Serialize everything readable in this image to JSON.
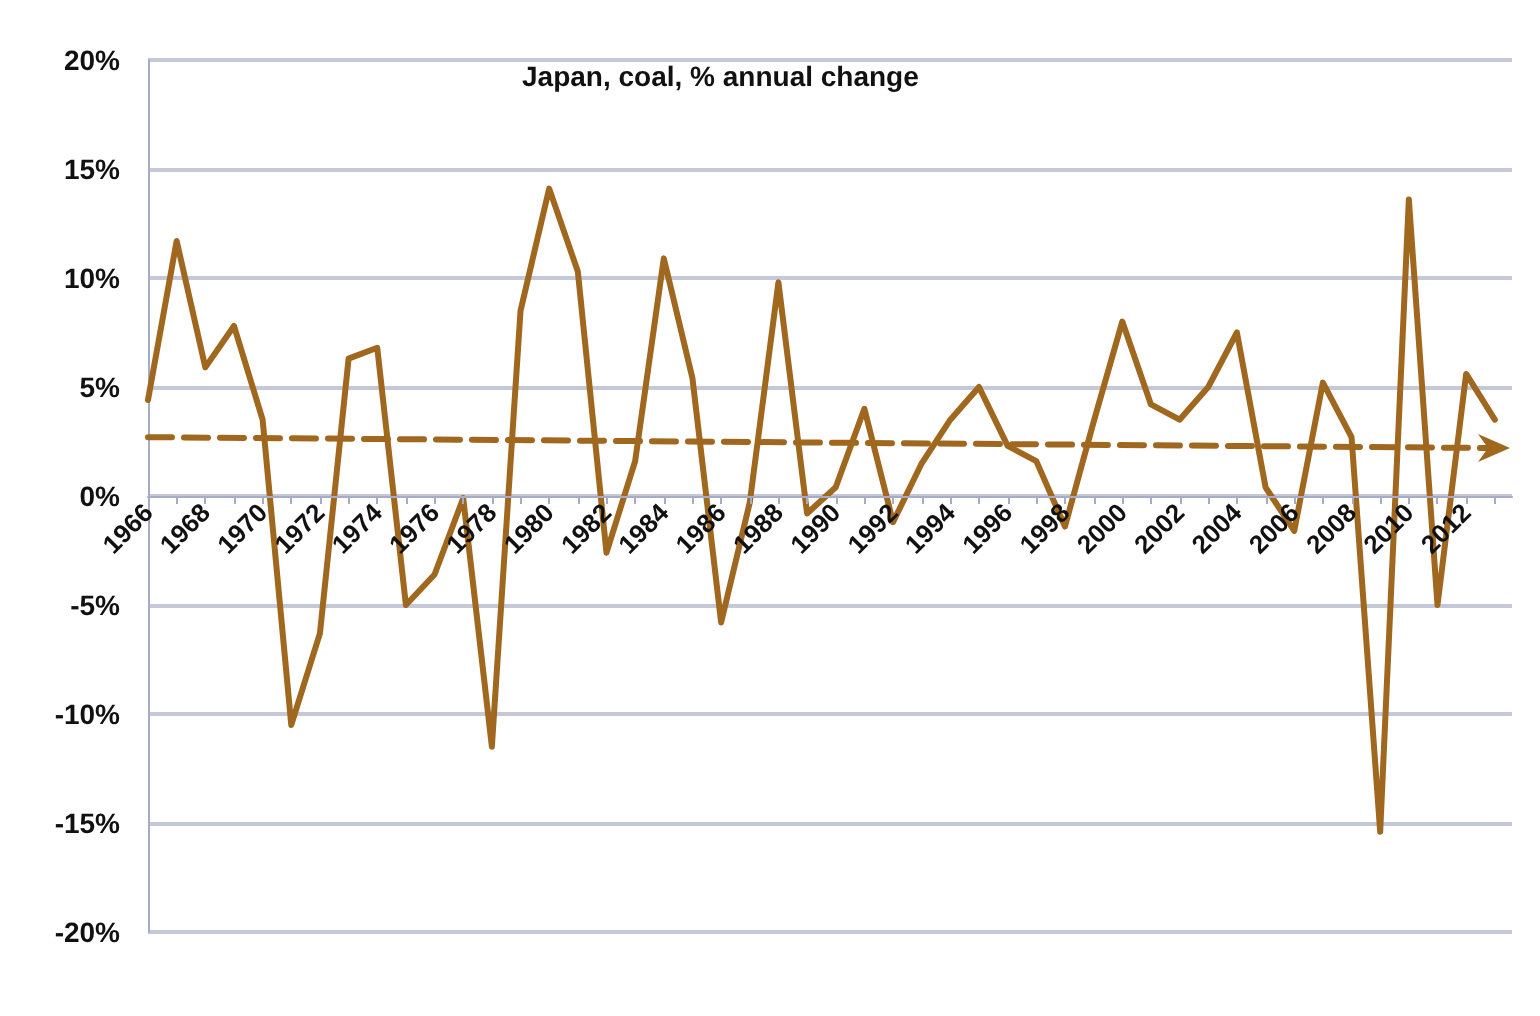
{
  "chart_data": {
    "type": "line",
    "title": "Japan, coal, % annual change",
    "x": [
      1966,
      1967,
      1968,
      1969,
      1970,
      1971,
      1972,
      1973,
      1974,
      1975,
      1976,
      1977,
      1978,
      1979,
      1980,
      1981,
      1982,
      1983,
      1984,
      1985,
      1986,
      1987,
      1988,
      1989,
      1990,
      1991,
      1992,
      1993,
      1994,
      1995,
      1996,
      1997,
      1998,
      1999,
      2000,
      2001,
      2002,
      2003,
      2004,
      2005,
      2006,
      2007,
      2008,
      2009,
      2010,
      2011,
      2012,
      2013
    ],
    "series": [
      {
        "color": "#a0671f",
        "values": [
          4.4,
          11.7,
          5.9,
          7.8,
          3.5,
          -10.5,
          -6.3,
          6.3,
          6.8,
          -5.0,
          -3.6,
          -0.1,
          -11.5,
          8.5,
          14.1,
          10.3,
          -2.6,
          1.6,
          10.9,
          5.4,
          -5.8,
          -0.3,
          9.8,
          -0.8,
          0.4,
          4.0,
          -1.2,
          1.5,
          3.5,
          5.0,
          2.3,
          1.6,
          -1.4,
          3.4,
          8.0,
          4.2,
          3.5,
          5.0,
          7.5,
          0.4,
          -1.6,
          5.2,
          2.7,
          -15.4,
          13.6,
          -5.0,
          5.6,
          3.5
        ]
      },
      {
        "type": "line",
        "x": [
          1966,
          2013
        ],
        "color": "#a0671f",
        "line_style": "dashed",
        "values": [
          2.7,
          2.2
        ]
      }
    ],
    "xlim": [
      1966,
      2013.6
    ],
    "xticks": [
      {
        "value": 1966,
        "label": "1966"
      },
      {
        "value": 1967,
        "label": null
      },
      {
        "value": 1968,
        "label": "1968"
      },
      {
        "value": 1969,
        "label": null
      },
      {
        "value": 1970,
        "label": "1970"
      },
      {
        "value": 1971,
        "label": null
      },
      {
        "value": 1972,
        "label": "1972"
      },
      {
        "value": 1973,
        "label": null
      },
      {
        "value": 1974,
        "label": "1974"
      },
      {
        "value": 1975,
        "label": null
      },
      {
        "value": 1976,
        "label": "1976"
      },
      {
        "value": 1977,
        "label": null
      },
      {
        "value": 1978,
        "label": "1978"
      },
      {
        "value": 1979,
        "label": null
      },
      {
        "value": 1980,
        "label": "1980"
      },
      {
        "value": 1981,
        "label": null
      },
      {
        "value": 1982,
        "label": "1982"
      },
      {
        "value": 1983,
        "label": null
      },
      {
        "value": 1984,
        "label": "1984"
      },
      {
        "value": 1985,
        "label": null
      },
      {
        "value": 1986,
        "label": "1986"
      },
      {
        "value": 1987,
        "label": null
      },
      {
        "value": 1988,
        "label": "1988"
      },
      {
        "value": 1989,
        "label": null
      },
      {
        "value": 1990,
        "label": "1990"
      },
      {
        "value": 1991,
        "label": null
      },
      {
        "value": 1992,
        "label": "1992"
      },
      {
        "value": 1993,
        "label": null
      },
      {
        "value": 1994,
        "label": "1994"
      },
      {
        "value": 1995,
        "label": null
      },
      {
        "value": 1996,
        "label": "1996"
      },
      {
        "value": 1997,
        "label": null
      },
      {
        "value": 1998,
        "label": "1998"
      },
      {
        "value": 1999,
        "label": null
      },
      {
        "value": 2000,
        "label": "2000"
      },
      {
        "value": 2001,
        "label": null
      },
      {
        "value": 2002,
        "label": "2002"
      },
      {
        "value": 2003,
        "label": null
      },
      {
        "value": 2004,
        "label": "2004"
      },
      {
        "value": 2005,
        "label": null
      },
      {
        "value": 2006,
        "label": "2006"
      },
      {
        "value": 2007,
        "label": null
      },
      {
        "value": 2008,
        "label": "2008"
      },
      {
        "value": 2009,
        "label": null
      },
      {
        "value": 2010,
        "label": "2010"
      },
      {
        "value": 2011,
        "label": null
      },
      {
        "value": 2012,
        "label": "2012"
      },
      {
        "value": 2013,
        "label": null
      }
    ],
    "ylim": [
      -20,
      20
    ],
    "yticks": [
      {
        "value": -20,
        "label": "-20%"
      },
      {
        "value": -15,
        "label": "-15%"
      },
      {
        "value": -10,
        "label": "-10%"
      },
      {
        "value": -5,
        "label": "-5%"
      },
      {
        "value": 0,
        "label": "0%"
      },
      {
        "value": 5,
        "label": "5%"
      },
      {
        "value": 10,
        "label": "10%"
      },
      {
        "value": 15,
        "label": "15%"
      },
      {
        "value": 20,
        "label": "20%"
      }
    ],
    "grid": "y",
    "line_style": "solid"
  }
}
